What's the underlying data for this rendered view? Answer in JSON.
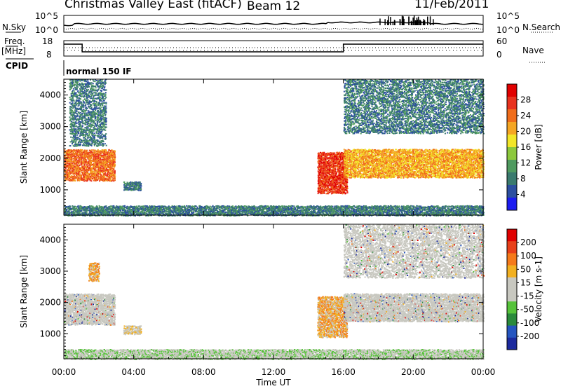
{
  "header": {
    "station": "Christmas Valley East (fitACF)",
    "beam": "Beam 12",
    "date": "11/Feb/2011"
  },
  "top_panels": {
    "nsky_label": "N.Sky",
    "nsearch_label": "N.Search",
    "noise_ticks_left": [
      "10^5",
      "10^0"
    ],
    "noise_ticks_right": [
      "10^5",
      "10^0"
    ],
    "freq_label_top": "Freq.",
    "freq_label_bottom": "[MHz]",
    "freq_ticks": [
      "18",
      "8"
    ],
    "nave_label": "Nave",
    "nave_ticks": [
      "60",
      "0"
    ],
    "cpid_label": "CPID",
    "cpid_value": "normal 150 IF"
  },
  "colors": {
    "power_scale": [
      "#1c1cf0",
      "#2c4fa0",
      "#3a7a6e",
      "#4f9a5f",
      "#8cc83c",
      "#f2e628",
      "#f5a623",
      "#f06d1b",
      "#e8321e",
      "#e10000"
    ],
    "velocity_scale": [
      "#1c2a9e",
      "#2555c0",
      "#2a8a3c",
      "#56c33a",
      "#c8c8c0",
      "#c8c8c0",
      "#f2b020",
      "#f57a1a",
      "#e8401a",
      "#e00000"
    ],
    "ground_scatter": "#c8c8c0"
  },
  "chart_data": [
    {
      "type": "heatmap",
      "panel": "power",
      "xlabel": "",
      "ylabel": "Slant Range [km]",
      "yticks": [
        "1000",
        "2000",
        "3000",
        "4000"
      ],
      "ylim": [
        200,
        4500
      ],
      "xlim": [
        "00:00",
        "24:00"
      ],
      "colorbar": {
        "label": "Power [dB]",
        "ticks": [
          "28",
          "24",
          "20",
          "16",
          "12",
          "8",
          "4"
        ],
        "range": [
          0,
          30
        ]
      },
      "scatter_regions": [
        {
          "t_start": 0.0,
          "t_end": 2.9,
          "range_low_km": 1300,
          "range_high_km": 2300,
          "power_db": 24
        },
        {
          "t_start": 0.3,
          "t_end": 2.4,
          "range_low_km": 2400,
          "range_high_km": 4500,
          "power_db": 6
        },
        {
          "t_start": 3.4,
          "t_end": 4.4,
          "range_low_km": 1000,
          "range_high_km": 1250,
          "power_db": 5
        },
        {
          "t_start": 0.0,
          "t_end": 24.0,
          "range_low_km": 200,
          "range_high_km": 500,
          "power_db": 6
        },
        {
          "t_start": 14.5,
          "t_end": 16.2,
          "range_low_km": 900,
          "range_high_km": 2200,
          "power_db": 26
        },
        {
          "t_start": 16.0,
          "t_end": 24.0,
          "range_low_km": 1400,
          "range_high_km": 2300,
          "power_db": 20
        },
        {
          "t_start": 16.0,
          "t_end": 24.0,
          "range_low_km": 2800,
          "range_high_km": 4500,
          "power_db": 5
        }
      ]
    },
    {
      "type": "heatmap",
      "panel": "velocity",
      "xlabel": "Time UT",
      "ylabel": "Slant Range [km]",
      "yticks": [
        "1000",
        "2000",
        "3000",
        "4000"
      ],
      "ylim": [
        200,
        4500
      ],
      "xticks": [
        "00:00",
        "04:00",
        "08:00",
        "12:00",
        "16:00",
        "20:00",
        "00:00"
      ],
      "colorbar": {
        "label": "Velocity [m s-1]",
        "ticks": [
          "200",
          "100",
          "50",
          "15",
          "-15",
          "-50",
          "-100",
          "-200"
        ],
        "range": [
          -250,
          250
        ]
      },
      "scatter_regions": [
        {
          "t_start": 0.0,
          "t_end": 2.9,
          "range_low_km": 1300,
          "range_high_km": 2300,
          "velocity": 0
        },
        {
          "t_start": 1.4,
          "t_end": 2.0,
          "range_low_km": 2700,
          "range_high_km": 3300,
          "velocity": 60
        },
        {
          "t_start": 3.4,
          "t_end": 4.4,
          "range_low_km": 1000,
          "range_high_km": 1250,
          "velocity": 50
        },
        {
          "t_start": 0.0,
          "t_end": 24.0,
          "range_low_km": 200,
          "range_high_km": 500,
          "velocity": -40
        },
        {
          "t_start": 14.5,
          "t_end": 16.2,
          "range_low_km": 900,
          "range_high_km": 2200,
          "velocity": 60
        },
        {
          "t_start": 16.0,
          "t_end": 24.0,
          "range_low_km": 1400,
          "range_high_km": 2300,
          "velocity": 0
        },
        {
          "t_start": 16.0,
          "t_end": 24.0,
          "range_low_km": 2800,
          "range_high_km": 4500,
          "velocity": 0
        }
      ]
    }
  ]
}
